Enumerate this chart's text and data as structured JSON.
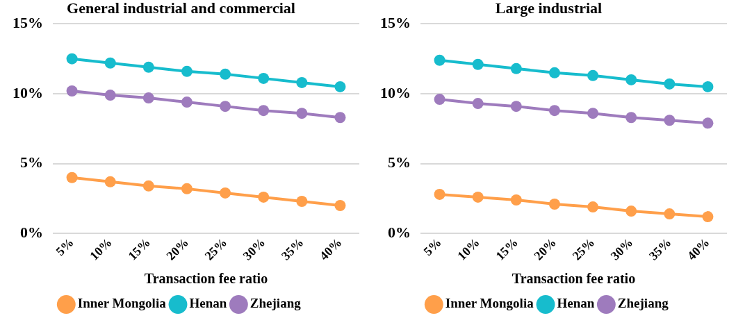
{
  "chart_data": [
    {
      "type": "line",
      "title": "General industrial and commercial",
      "xlabel": "Transaction fee ratio",
      "categories": [
        "5%",
        "10%",
        "15%",
        "20%",
        "25%",
        "30%",
        "35%",
        "40%"
      ],
      "series": [
        {
          "name": "Inner Mongolia",
          "color": "#ff9f4a",
          "values": [
            4.0,
            3.7,
            3.4,
            3.2,
            2.9,
            2.6,
            2.3,
            2.0
          ]
        },
        {
          "name": "Henan",
          "color": "#17bccd",
          "values": [
            12.5,
            12.2,
            11.9,
            11.6,
            11.4,
            11.1,
            10.8,
            10.5
          ]
        },
        {
          "name": "Zhejiang",
          "color": "#9e7bbd",
          "values": [
            10.2,
            9.9,
            9.7,
            9.4,
            9.1,
            8.8,
            8.6,
            8.3
          ]
        }
      ],
      "ylim": [
        0,
        15
      ],
      "yticks": [
        {
          "value": 0,
          "label": "0%"
        },
        {
          "value": 5,
          "label": "5%"
        },
        {
          "value": 10,
          "label": "10%"
        },
        {
          "value": 15,
          "label": "15%"
        }
      ],
      "grid": "y",
      "legend": "bottom",
      "marker": "circle",
      "line_style": "solid"
    },
    {
      "type": "line",
      "title": "Large industrial",
      "xlabel": "Transaction fee ratio",
      "categories": [
        "5%",
        "10%",
        "15%",
        "20%",
        "25%",
        "30%",
        "35%",
        "40%"
      ],
      "series": [
        {
          "name": "Inner Mongolia",
          "color": "#ff9f4a",
          "values": [
            2.8,
            2.6,
            2.4,
            2.1,
            1.9,
            1.6,
            1.4,
            1.2
          ]
        },
        {
          "name": "Henan",
          "color": "#17bccd",
          "values": [
            12.4,
            12.1,
            11.8,
            11.5,
            11.3,
            11.0,
            10.7,
            10.5
          ]
        },
        {
          "name": "Zhejiang",
          "color": "#9e7bbd",
          "values": [
            9.6,
            9.3,
            9.1,
            8.8,
            8.6,
            8.3,
            8.1,
            7.9
          ]
        }
      ],
      "ylim": [
        0,
        15
      ],
      "yticks": [
        {
          "value": 0,
          "label": "0%"
        },
        {
          "value": 5,
          "label": "5%"
        },
        {
          "value": 10,
          "label": "10%"
        },
        {
          "value": 15,
          "label": "15%"
        }
      ],
      "grid": "y",
      "legend": "bottom",
      "marker": "circle",
      "line_style": "solid"
    }
  ]
}
